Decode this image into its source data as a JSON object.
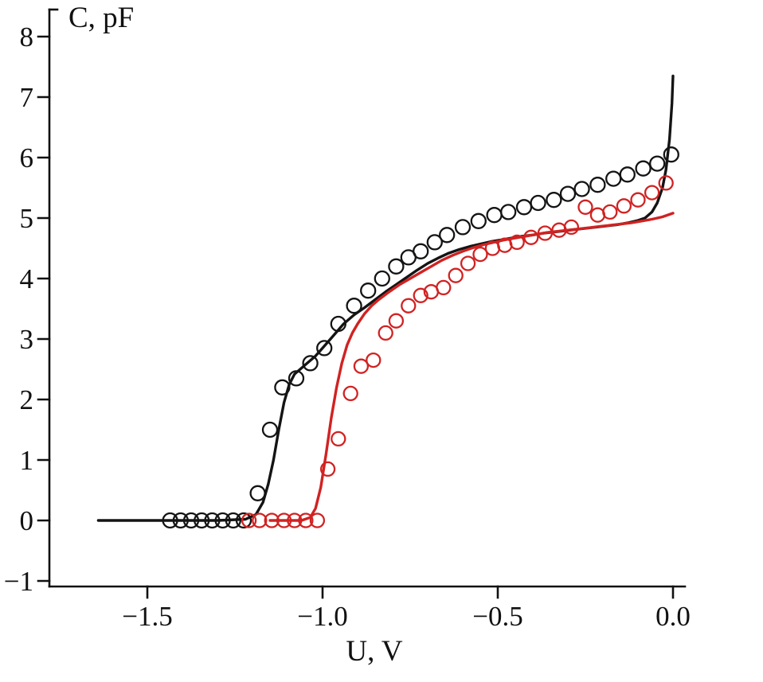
{
  "figure": {
    "background": "#ffffff",
    "axis_color": "#111111"
  },
  "chart_data": {
    "type": "line+scatter",
    "title": "",
    "xlabel": "U, V",
    "ylabel": "C, pF",
    "grid": false,
    "legend": "none",
    "x_range": [
      -1.78,
      0.03
    ],
    "y_range": [
      -1.1,
      8.45
    ],
    "x_ticks": {
      "values": [
        -1.5,
        -1.0,
        -0.5,
        0.0
      ],
      "labels": [
        "−1.5",
        "−1.0",
        "−0.5",
        "0.0"
      ]
    },
    "y_ticks": {
      "values": [
        -1,
        0,
        1,
        2,
        3,
        4,
        5,
        6,
        7,
        8
      ],
      "labels": [
        "−1",
        "0",
        "1",
        "2",
        "3",
        "4",
        "5",
        "6",
        "7",
        "8"
      ]
    },
    "series": [
      {
        "name": "black-model-curve",
        "kind": "line",
        "color": "#141414",
        "stroke_width": 3.4,
        "points": [
          [
            -1.64,
            0
          ],
          [
            -1.45,
            0
          ],
          [
            -1.3,
            0
          ],
          [
            -1.22,
            0.02
          ],
          [
            -1.19,
            0.1
          ],
          [
            -1.17,
            0.3
          ],
          [
            -1.155,
            0.6
          ],
          [
            -1.14,
            1.0
          ],
          [
            -1.125,
            1.5
          ],
          [
            -1.11,
            1.95
          ],
          [
            -1.095,
            2.25
          ],
          [
            -1.08,
            2.42
          ],
          [
            -1.06,
            2.52
          ],
          [
            -1.04,
            2.62
          ],
          [
            -1.02,
            2.72
          ],
          [
            -1.0,
            2.85
          ],
          [
            -0.97,
            3.05
          ],
          [
            -0.94,
            3.25
          ],
          [
            -0.91,
            3.4
          ],
          [
            -0.88,
            3.52
          ],
          [
            -0.85,
            3.65
          ],
          [
            -0.82,
            3.78
          ],
          [
            -0.79,
            3.9
          ],
          [
            -0.76,
            4.02
          ],
          [
            -0.73,
            4.14
          ],
          [
            -0.7,
            4.25
          ],
          [
            -0.67,
            4.34
          ],
          [
            -0.64,
            4.42
          ],
          [
            -0.61,
            4.48
          ],
          [
            -0.58,
            4.53
          ],
          [
            -0.55,
            4.57
          ],
          [
            -0.52,
            4.61
          ],
          [
            -0.49,
            4.64
          ],
          [
            -0.46,
            4.67
          ],
          [
            -0.43,
            4.7
          ],
          [
            -0.4,
            4.72
          ],
          [
            -0.37,
            4.75
          ],
          [
            -0.34,
            4.77
          ],
          [
            -0.31,
            4.79
          ],
          [
            -0.28,
            4.81
          ],
          [
            -0.25,
            4.83
          ],
          [
            -0.22,
            4.85
          ],
          [
            -0.19,
            4.87
          ],
          [
            -0.16,
            4.89
          ],
          [
            -0.13,
            4.92
          ],
          [
            -0.1,
            4.96
          ],
          [
            -0.08,
            5.0
          ],
          [
            -0.06,
            5.1
          ],
          [
            -0.045,
            5.25
          ],
          [
            -0.03,
            5.5
          ],
          [
            -0.02,
            5.8
          ],
          [
            -0.01,
            6.3
          ],
          [
            -0.003,
            6.9
          ],
          [
            0.0,
            7.35
          ]
        ]
      },
      {
        "name": "red-model-curve",
        "kind": "line",
        "color": "#d12222",
        "stroke_width": 3.4,
        "points": [
          [
            -1.15,
            0
          ],
          [
            -1.1,
            0
          ],
          [
            -1.06,
            0
          ],
          [
            -1.035,
            0.05
          ],
          [
            -1.02,
            0.2
          ],
          [
            -1.005,
            0.55
          ],
          [
            -0.99,
            1.1
          ],
          [
            -0.975,
            1.7
          ],
          [
            -0.96,
            2.2
          ],
          [
            -0.945,
            2.6
          ],
          [
            -0.93,
            2.9
          ],
          [
            -0.915,
            3.1
          ],
          [
            -0.9,
            3.25
          ],
          [
            -0.88,
            3.42
          ],
          [
            -0.86,
            3.55
          ],
          [
            -0.84,
            3.65
          ],
          [
            -0.81,
            3.78
          ],
          [
            -0.78,
            3.9
          ],
          [
            -0.75,
            4.0
          ],
          [
            -0.72,
            4.1
          ],
          [
            -0.69,
            4.2
          ],
          [
            -0.66,
            4.3
          ],
          [
            -0.63,
            4.38
          ],
          [
            -0.6,
            4.45
          ],
          [
            -0.57,
            4.51
          ],
          [
            -0.54,
            4.56
          ],
          [
            -0.51,
            4.6
          ],
          [
            -0.48,
            4.64
          ],
          [
            -0.45,
            4.67
          ],
          [
            -0.42,
            4.7
          ],
          [
            -0.39,
            4.73
          ],
          [
            -0.36,
            4.76
          ],
          [
            -0.33,
            4.78
          ],
          [
            -0.3,
            4.8
          ],
          [
            -0.27,
            4.82
          ],
          [
            -0.24,
            4.84
          ],
          [
            -0.21,
            4.86
          ],
          [
            -0.18,
            4.88
          ],
          [
            -0.15,
            4.9
          ],
          [
            -0.12,
            4.92
          ],
          [
            -0.09,
            4.95
          ],
          [
            -0.06,
            4.98
          ],
          [
            -0.03,
            5.02
          ],
          [
            0.0,
            5.08
          ]
        ]
      },
      {
        "name": "black-experimental-points",
        "kind": "markers",
        "marker": "open-circle",
        "color": "#141414",
        "marker_radius": 9,
        "stroke_width": 2.3,
        "points": [
          [
            -1.435,
            0
          ],
          [
            -1.405,
            0
          ],
          [
            -1.375,
            0
          ],
          [
            -1.345,
            0
          ],
          [
            -1.315,
            0
          ],
          [
            -1.285,
            0
          ],
          [
            -1.255,
            0
          ],
          [
            -1.225,
            0
          ],
          [
            -1.185,
            0.45
          ],
          [
            -1.15,
            1.5
          ],
          [
            -1.115,
            2.2
          ],
          [
            -1.075,
            2.35
          ],
          [
            -1.035,
            2.6
          ],
          [
            -0.995,
            2.85
          ],
          [
            -0.955,
            3.25
          ],
          [
            -0.91,
            3.55
          ],
          [
            -0.87,
            3.8
          ],
          [
            -0.83,
            4.0
          ],
          [
            -0.79,
            4.2
          ],
          [
            -0.755,
            4.35
          ],
          [
            -0.72,
            4.45
          ],
          [
            -0.68,
            4.6
          ],
          [
            -0.645,
            4.72
          ],
          [
            -0.6,
            4.85
          ],
          [
            -0.555,
            4.95
          ],
          [
            -0.51,
            5.05
          ],
          [
            -0.47,
            5.1
          ],
          [
            -0.425,
            5.18
          ],
          [
            -0.385,
            5.25
          ],
          [
            -0.34,
            5.3
          ],
          [
            -0.3,
            5.4
          ],
          [
            -0.26,
            5.48
          ],
          [
            -0.215,
            5.55
          ],
          [
            -0.17,
            5.65
          ],
          [
            -0.13,
            5.72
          ],
          [
            -0.085,
            5.82
          ],
          [
            -0.045,
            5.9
          ],
          [
            -0.005,
            6.05
          ]
        ]
      },
      {
        "name": "red-experimental-points",
        "kind": "markers",
        "marker": "open-circle",
        "color": "#d12222",
        "marker_radius": 8.5,
        "stroke_width": 2.3,
        "points": [
          [
            -1.21,
            0
          ],
          [
            -1.18,
            0
          ],
          [
            -1.145,
            0
          ],
          [
            -1.11,
            0
          ],
          [
            -1.08,
            0
          ],
          [
            -1.048,
            0
          ],
          [
            -1.015,
            0
          ],
          [
            -0.985,
            0.85
          ],
          [
            -0.955,
            1.35
          ],
          [
            -0.92,
            2.1
          ],
          [
            -0.89,
            2.55
          ],
          [
            -0.855,
            2.65
          ],
          [
            -0.82,
            3.1
          ],
          [
            -0.79,
            3.3
          ],
          [
            -0.755,
            3.55
          ],
          [
            -0.72,
            3.72
          ],
          [
            -0.69,
            3.78
          ],
          [
            -0.655,
            3.85
          ],
          [
            -0.62,
            4.05
          ],
          [
            -0.585,
            4.25
          ],
          [
            -0.55,
            4.4
          ],
          [
            -0.515,
            4.5
          ],
          [
            -0.48,
            4.55
          ],
          [
            -0.445,
            4.6
          ],
          [
            -0.405,
            4.68
          ],
          [
            -0.365,
            4.75
          ],
          [
            -0.325,
            4.8
          ],
          [
            -0.29,
            4.85
          ],
          [
            -0.25,
            5.18
          ],
          [
            -0.215,
            5.05
          ],
          [
            -0.18,
            5.1
          ],
          [
            -0.14,
            5.2
          ],
          [
            -0.1,
            5.3
          ],
          [
            -0.06,
            5.42
          ],
          [
            -0.02,
            5.58
          ]
        ]
      }
    ]
  }
}
